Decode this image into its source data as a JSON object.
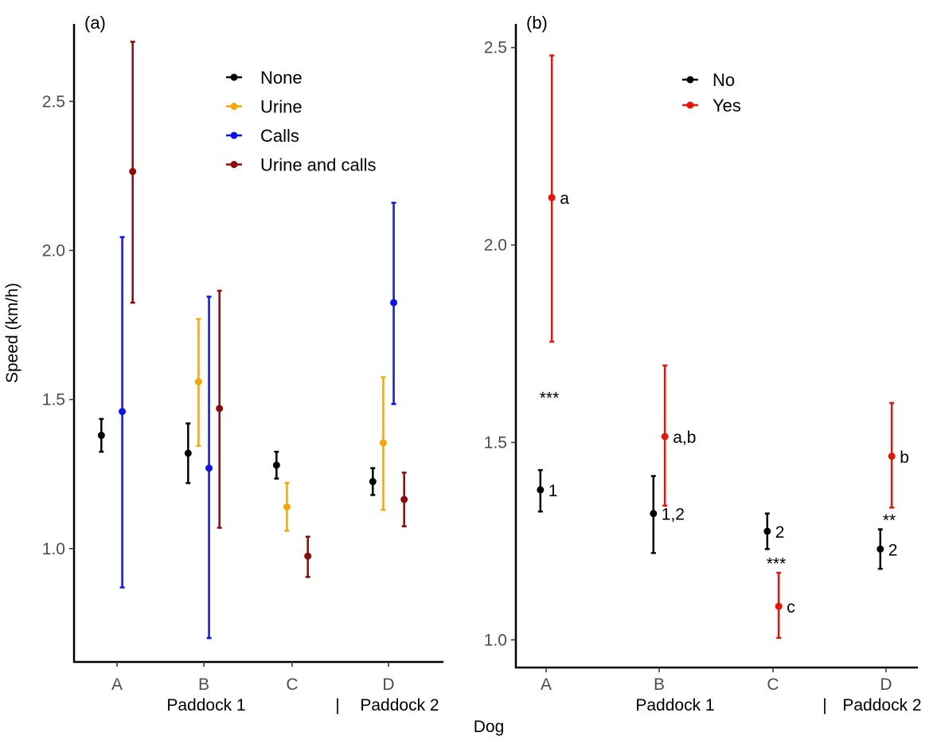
{
  "y_axis_title": "Speed (km/h)",
  "x_axis_title": "Dog",
  "chart_data": [
    {
      "panel": "(a)",
      "type": "scatter",
      "ylim": [
        0.62,
        2.76
      ],
      "yticks": [
        1.0,
        1.5,
        2.0,
        2.5
      ],
      "ytick_labels": [
        "1.0",
        "1.5",
        "2.0",
        "2.5"
      ],
      "categories": [
        "A",
        "B",
        "C",
        "D"
      ],
      "group_labels": [
        "Paddock 1",
        "Paddock 2"
      ],
      "group_separator": "|",
      "legend": {
        "placement": "top-right"
      },
      "series": [
        {
          "name": "None",
          "color": "#000000",
          "offset": -0.24,
          "values": [
            1.38,
            1.32,
            1.28,
            1.225
          ],
          "lower": [
            1.325,
            1.22,
            1.235,
            1.18
          ],
          "upper": [
            1.435,
            1.42,
            1.325,
            1.27
          ]
        },
        {
          "name": "Urine",
          "color": "#f5a800",
          "offset": -0.08,
          "values": [
            null,
            1.56,
            1.14,
            1.355
          ],
          "lower": [
            null,
            1.345,
            1.06,
            1.13
          ],
          "upper": [
            null,
            1.77,
            1.22,
            1.575
          ]
        },
        {
          "name": "Calls",
          "color": "#0b14f0",
          "offset": 0.08,
          "values": [
            1.46,
            1.27,
            null,
            1.825
          ],
          "lower": [
            0.87,
            0.7,
            null,
            1.485
          ],
          "upper": [
            2.045,
            1.845,
            null,
            2.16
          ]
        },
        {
          "name": "Urine and calls",
          "color": "#8b0a0a",
          "offset": 0.24,
          "values": [
            2.265,
            1.47,
            0.975,
            1.165
          ],
          "lower": [
            1.825,
            1.07,
            0.905,
            1.075
          ],
          "upper": [
            2.7,
            1.865,
            1.04,
            1.255
          ]
        }
      ]
    },
    {
      "panel": "(b)",
      "type": "scatter",
      "ylim": [
        0.93,
        2.56
      ],
      "yticks": [
        1.0,
        1.5,
        2.0,
        2.5
      ],
      "ytick_labels": [
        "1.0",
        "1.5",
        "2.0",
        "2.5"
      ],
      "categories": [
        "A",
        "B",
        "C",
        "D"
      ],
      "group_labels": [
        "Paddock 1",
        "Paddock 2"
      ],
      "group_separator": "|",
      "legend": {
        "placement": "top-center"
      },
      "series": [
        {
          "name": "No",
          "color": "#000000",
          "offset": -0.08,
          "values": [
            1.38,
            1.32,
            1.275,
            1.23
          ],
          "lower": [
            1.325,
            1.22,
            1.23,
            1.18
          ],
          "upper": [
            1.43,
            1.415,
            1.32,
            1.28
          ],
          "labels": [
            "1",
            "1,2",
            "2",
            "2"
          ]
        },
        {
          "name": "Yes",
          "color": "#e8140a",
          "offset": 0.08,
          "values": [
            2.12,
            1.515,
            1.085,
            1.465
          ],
          "lower": [
            1.755,
            1.34,
            1.005,
            1.335
          ],
          "upper": [
            2.48,
            1.695,
            1.17,
            1.6
          ],
          "labels": [
            "a",
            "a,b",
            "c",
            "b"
          ]
        }
      ],
      "significance": [
        {
          "category": "A",
          "text": "***",
          "y": 1.615
        },
        {
          "category": "C",
          "text": "***",
          "y": 1.195
        },
        {
          "category": "D",
          "text": "**",
          "y": 1.305
        }
      ]
    }
  ]
}
